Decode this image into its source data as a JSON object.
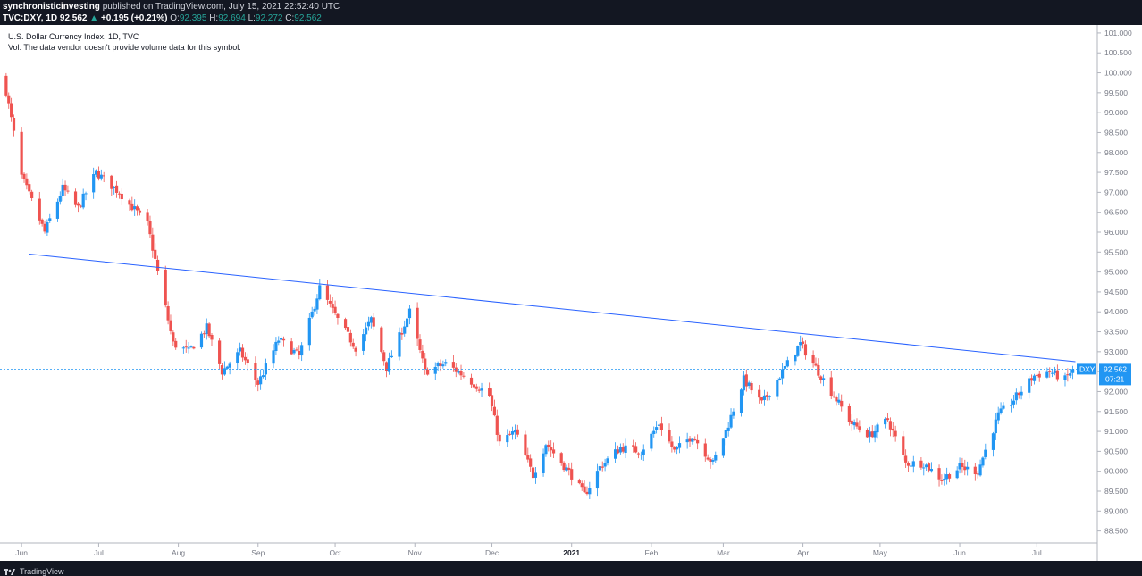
{
  "header": {
    "author": "synchronisticinvesting",
    "published": "published on TradingView.com, July 15, 2021 22:52:40 UTC",
    "symbol": "TVC:DXY, 1D",
    "last": "92.562",
    "change": "+0.195 (+0.21%)",
    "o_label": "O:",
    "o_value": "92.395",
    "h_label": "H:",
    "h_value": "92.694",
    "l_label": "L:",
    "l_value": "92.272",
    "c_label": "C:",
    "c_value": "92.562"
  },
  "legend": {
    "title": "U.S. Dollar Currency Index, 1D, TVC",
    "volume_note": "Vol: The data vendor doesn't provide volume data for this symbol."
  },
  "price_badge": {
    "ticker": "DXY",
    "price": "92.562",
    "countdown": "07:21"
  },
  "footer": {
    "brand": "TradingView"
  },
  "colors": {
    "up": "#2196f3",
    "down": "#ef5350",
    "trendline": "#2962ff",
    "background": "#ffffff",
    "header_bg": "#131722"
  },
  "chart_data": {
    "type": "candlestick",
    "title": "U.S. Dollar Currency Index, 1D, TVC",
    "xlabel": "",
    "ylabel": "",
    "ylim": [
      88.2,
      101.2
    ],
    "y_ticks": [
      "101.000",
      "100.500",
      "100.000",
      "99.500",
      "99.000",
      "98.500",
      "98.000",
      "97.500",
      "97.000",
      "96.500",
      "96.000",
      "95.500",
      "95.000",
      "94.500",
      "94.000",
      "93.500",
      "93.000",
      "92.500",
      "92.000",
      "91.500",
      "91.000",
      "90.500",
      "90.000",
      "89.500",
      "89.000",
      "88.500"
    ],
    "x_ticks": [
      "Jun",
      "Jul",
      "Aug",
      "Sep",
      "Oct",
      "Nov",
      "Dec",
      "2021",
      "Feb",
      "Mar",
      "Apr",
      "May",
      "Jun",
      "Jul"
    ],
    "grid": false,
    "last_price": 92.562,
    "trendline": {
      "from": [
        "2020-06-04",
        95.45
      ],
      "to": [
        "2021-07-16",
        92.75
      ]
    },
    "series": [
      {
        "type": "close_path",
        "points": [
          [
            "2020-05-25",
            99.9
          ],
          [
            "2020-06-01",
            97.4
          ],
          [
            "2020-06-10",
            96.0
          ],
          [
            "2020-06-17",
            97.1
          ],
          [
            "2020-06-23",
            96.6
          ],
          [
            "2020-06-30",
            97.5
          ],
          [
            "2020-07-09",
            97.0
          ],
          [
            "2020-07-20",
            96.2
          ],
          [
            "2020-07-30",
            93.2
          ],
          [
            "2020-08-05",
            93.0
          ],
          [
            "2020-08-12",
            93.6
          ],
          [
            "2020-08-18",
            92.5
          ],
          [
            "2020-08-25",
            93.0
          ],
          [
            "2020-09-01",
            92.2
          ],
          [
            "2020-09-09",
            93.3
          ],
          [
            "2020-09-17",
            92.9
          ],
          [
            "2020-09-25",
            94.6
          ],
          [
            "2020-10-02",
            93.8
          ],
          [
            "2020-10-09",
            93.1
          ],
          [
            "2020-10-15",
            93.8
          ],
          [
            "2020-10-21",
            92.6
          ],
          [
            "2020-10-30",
            94.0
          ],
          [
            "2020-11-05",
            92.5
          ],
          [
            "2020-11-13",
            92.7
          ],
          [
            "2020-11-20",
            92.4
          ],
          [
            "2020-11-30",
            91.9
          ],
          [
            "2020-12-04",
            90.7
          ],
          [
            "2020-12-10",
            91.0
          ],
          [
            "2020-12-17",
            89.9
          ],
          [
            "2020-12-22",
            90.7
          ],
          [
            "2021-01-01",
            89.9
          ],
          [
            "2021-01-06",
            89.4
          ],
          [
            "2021-01-12",
            90.1
          ],
          [
            "2021-01-20",
            90.6
          ],
          [
            "2021-01-28",
            90.5
          ],
          [
            "2021-02-04",
            91.2
          ],
          [
            "2021-02-10",
            90.5
          ],
          [
            "2021-02-17",
            90.9
          ],
          [
            "2021-02-25",
            90.2
          ],
          [
            "2021-03-02",
            91.0
          ],
          [
            "2021-03-09",
            92.3
          ],
          [
            "2021-03-16",
            91.7
          ],
          [
            "2021-03-23",
            92.4
          ],
          [
            "2021-03-31",
            93.2
          ],
          [
            "2021-04-06",
            92.6
          ],
          [
            "2021-04-13",
            91.9
          ],
          [
            "2021-04-20",
            91.2
          ],
          [
            "2021-04-27",
            90.9
          ],
          [
            "2021-05-04",
            91.3
          ],
          [
            "2021-05-11",
            90.2
          ],
          [
            "2021-05-18",
            90.2
          ],
          [
            "2021-05-25",
            89.8
          ],
          [
            "2021-06-01",
            90.1
          ],
          [
            "2021-06-08",
            90.0
          ],
          [
            "2021-06-16",
            91.4
          ],
          [
            "2021-06-22",
            91.8
          ],
          [
            "2021-06-30",
            92.4
          ],
          [
            "2021-07-06",
            92.5
          ],
          [
            "2021-07-12",
            92.3
          ],
          [
            "2021-07-15",
            92.56
          ]
        ]
      }
    ]
  }
}
